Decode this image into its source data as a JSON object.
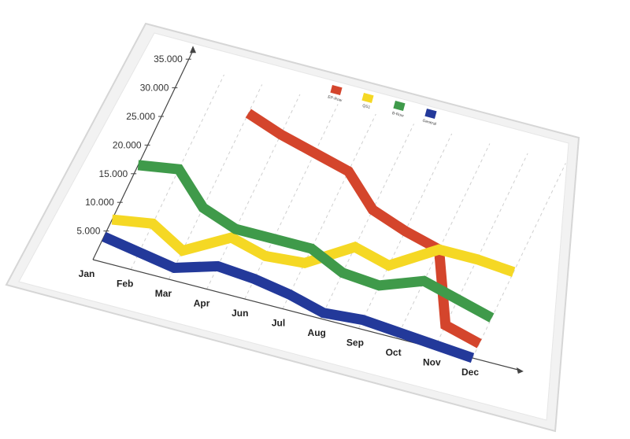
{
  "chart_data": {
    "type": "line",
    "title": "",
    "xlabel": "",
    "ylabel": "",
    "categories": [
      "Jan",
      "Feb",
      "Mar",
      "Apr",
      "Jun",
      "Jul",
      "Aug",
      "Sep",
      "Oct",
      "Nov",
      "Dec"
    ],
    "y_ticks": [
      "5.000",
      "10.000",
      "15.000",
      "20.000",
      "25.000",
      "30.000",
      "35.000"
    ],
    "ylim": [
      0,
      35000
    ],
    "grid": "vertical dashed",
    "legend_position": "top-right",
    "series": [
      {
        "name": "EP-Row",
        "color": "#d4452c",
        "values": [
          null,
          null,
          29000,
          27000,
          25500,
          24000,
          19000,
          17000,
          15500,
          4000,
          2500
        ]
      },
      {
        "name": "QS1",
        "color": "#f5d824",
        "values": [
          7000,
          8000,
          5000,
          9000,
          7500,
          8000,
          12500,
          11000,
          15500,
          15500,
          15000
        ]
      },
      {
        "name": "B-Row",
        "color": "#3f9a4a",
        "values": [
          16500,
          17500,
          12500,
          10500,
          10500,
          10500,
          8000,
          7500,
          10000,
          8500,
          7000
        ]
      },
      {
        "name": "General",
        "color": "#23399a",
        "values": [
          4000,
          3000,
          2000,
          4000,
          3500,
          2500,
          1000,
          1500,
          1000,
          500,
          0
        ]
      }
    ]
  }
}
